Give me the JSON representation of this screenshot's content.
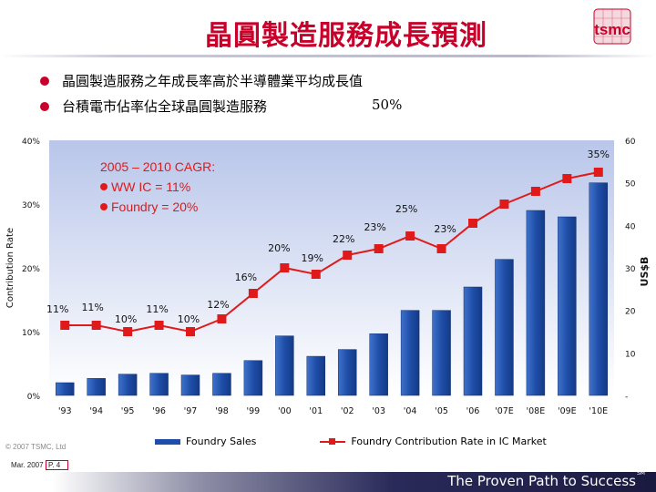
{
  "header": {
    "title": "晶圓製造服務成長預測",
    "logo_text": "tsmc"
  },
  "bullets": [
    {
      "text": "晶圓製造服務之年成長率高於半導體業平均成長值"
    },
    {
      "text": "台積電市佔率佔全球晶圓製造服務",
      "value": "50%"
    }
  ],
  "chart_data": {
    "type": "bar",
    "categories": [
      "'93",
      "'94",
      "'95",
      "'96",
      "'97",
      "'98",
      "'99",
      "'00",
      "'01",
      "'02",
      "'03",
      "'04",
      "'05",
      "'06",
      "'07E",
      "'08E",
      "'09E",
      "'10E"
    ],
    "series": [
      {
        "name": "Foundry Sales",
        "type": "bar",
        "axis": "right",
        "color": "#1f4ea8",
        "values": [
          3,
          4,
          5,
          5.2,
          4.8,
          5.2,
          8.2,
          14,
          9.2,
          10.8,
          14.5,
          20,
          20,
          25.5,
          32,
          43.5,
          42,
          50
        ]
      },
      {
        "name": "Foundry Contribution Rate in IC Market",
        "type": "line",
        "axis": "left",
        "color": "#e01a1a",
        "values": [
          11,
          11,
          10,
          11,
          10,
          12,
          16,
          20,
          19,
          22,
          23,
          25,
          23,
          27,
          30,
          32,
          34,
          35
        ],
        "labels": [
          "11%",
          "11%",
          "10%",
          "11%",
          "10%",
          "12%",
          "16%",
          "20%",
          "19%",
          "22%",
          "23%",
          "25%",
          "23%",
          "",
          "",
          "",
          "",
          "35%"
        ]
      }
    ],
    "ylabel": "Contribution Rate",
    "ylabel_right": "US$B",
    "y_left_ticks": [
      "0%",
      "10%",
      "20%",
      "30%",
      "40%"
    ],
    "y_left_range": [
      0,
      40
    ],
    "y_right_ticks": [
      "-",
      "10",
      "20",
      "30",
      "40",
      "50",
      "60"
    ],
    "y_right_range": [
      0,
      60
    ],
    "annotation": {
      "title": "2005 – 2010 CAGR:",
      "lines": [
        "WW IC = 11%",
        "Foundry = 20%"
      ]
    },
    "legend_position": "bottom"
  },
  "footer": {
    "copyright": "© 2007 TSMC, Ltd",
    "date": "Mar. 2007",
    "page": "P. 4",
    "tagline": "The Proven Path to Success",
    "tagline_mark": "SM"
  }
}
